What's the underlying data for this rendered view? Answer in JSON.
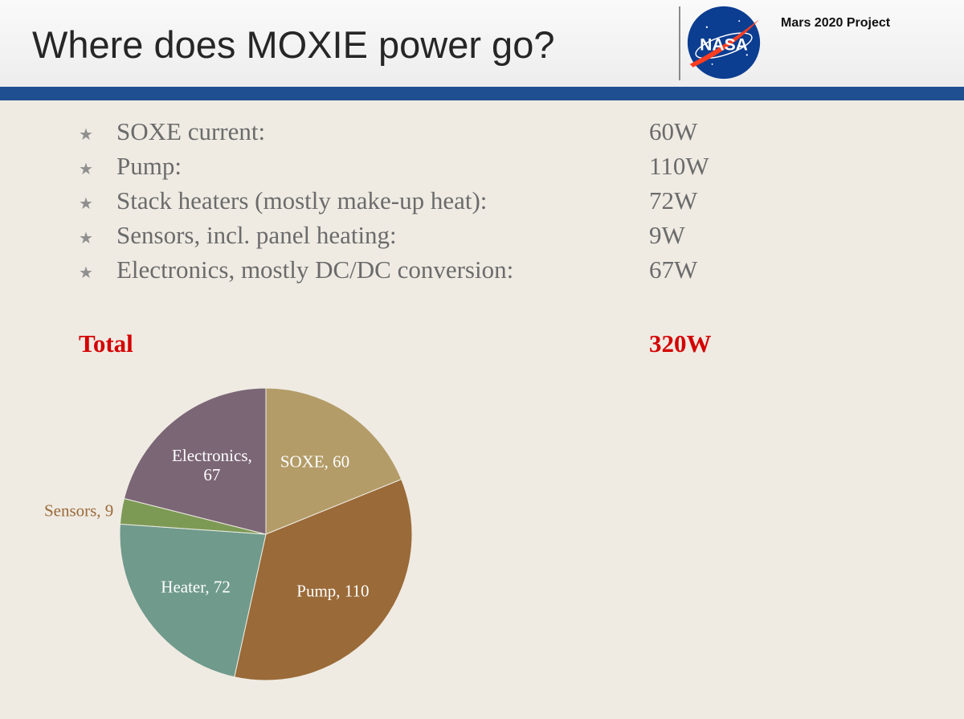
{
  "slide": {
    "title": "Where does MOXIE power go?",
    "project": "Mars 2020 Project",
    "logo_text": "NASA"
  },
  "bullets": [
    {
      "label": "SOXE current:",
      "value": "60W"
    },
    {
      "label": "Pump:",
      "value": "110W"
    },
    {
      "label": "Stack heaters (mostly make-up heat):",
      "value": "72W"
    },
    {
      "label": "Sensors, incl. panel heating:",
      "value": "9W"
    },
    {
      "label": "Electronics, mostly DC/DC conversion:",
      "value": "67W"
    }
  ],
  "total": {
    "label": "Total",
    "value": "320W"
  },
  "colors": {
    "blue_band": "#1f4f91",
    "total_text": "#d40000"
  },
  "chart_data": {
    "type": "pie",
    "start_angle_deg": 0,
    "direction": "clockwise",
    "slices": [
      {
        "category": "SOXE",
        "value": 60,
        "label": [
          "SOXE, 60"
        ],
        "color": "#b39c68",
        "label_color": "#ffffff"
      },
      {
        "category": "Pump",
        "value": 110,
        "label": [
          "Pump, 110"
        ],
        "color": "#9a6a38",
        "label_color": "#ffffff"
      },
      {
        "category": "Heater",
        "value": 72,
        "label": [
          "Heater, 72"
        ],
        "color": "#6f9a8c",
        "label_color": "#ffffff"
      },
      {
        "category": "Sensors",
        "value": 9,
        "label": [
          "Sensors, 9"
        ],
        "color": "#7d9a55",
        "label_color": "#9a6a38",
        "label_outside": true
      },
      {
        "category": "Electronics",
        "value": 67,
        "label": [
          "Electronics,",
          "67"
        ],
        "color": "#7b6676",
        "label_color": "#ffffff"
      }
    ]
  }
}
